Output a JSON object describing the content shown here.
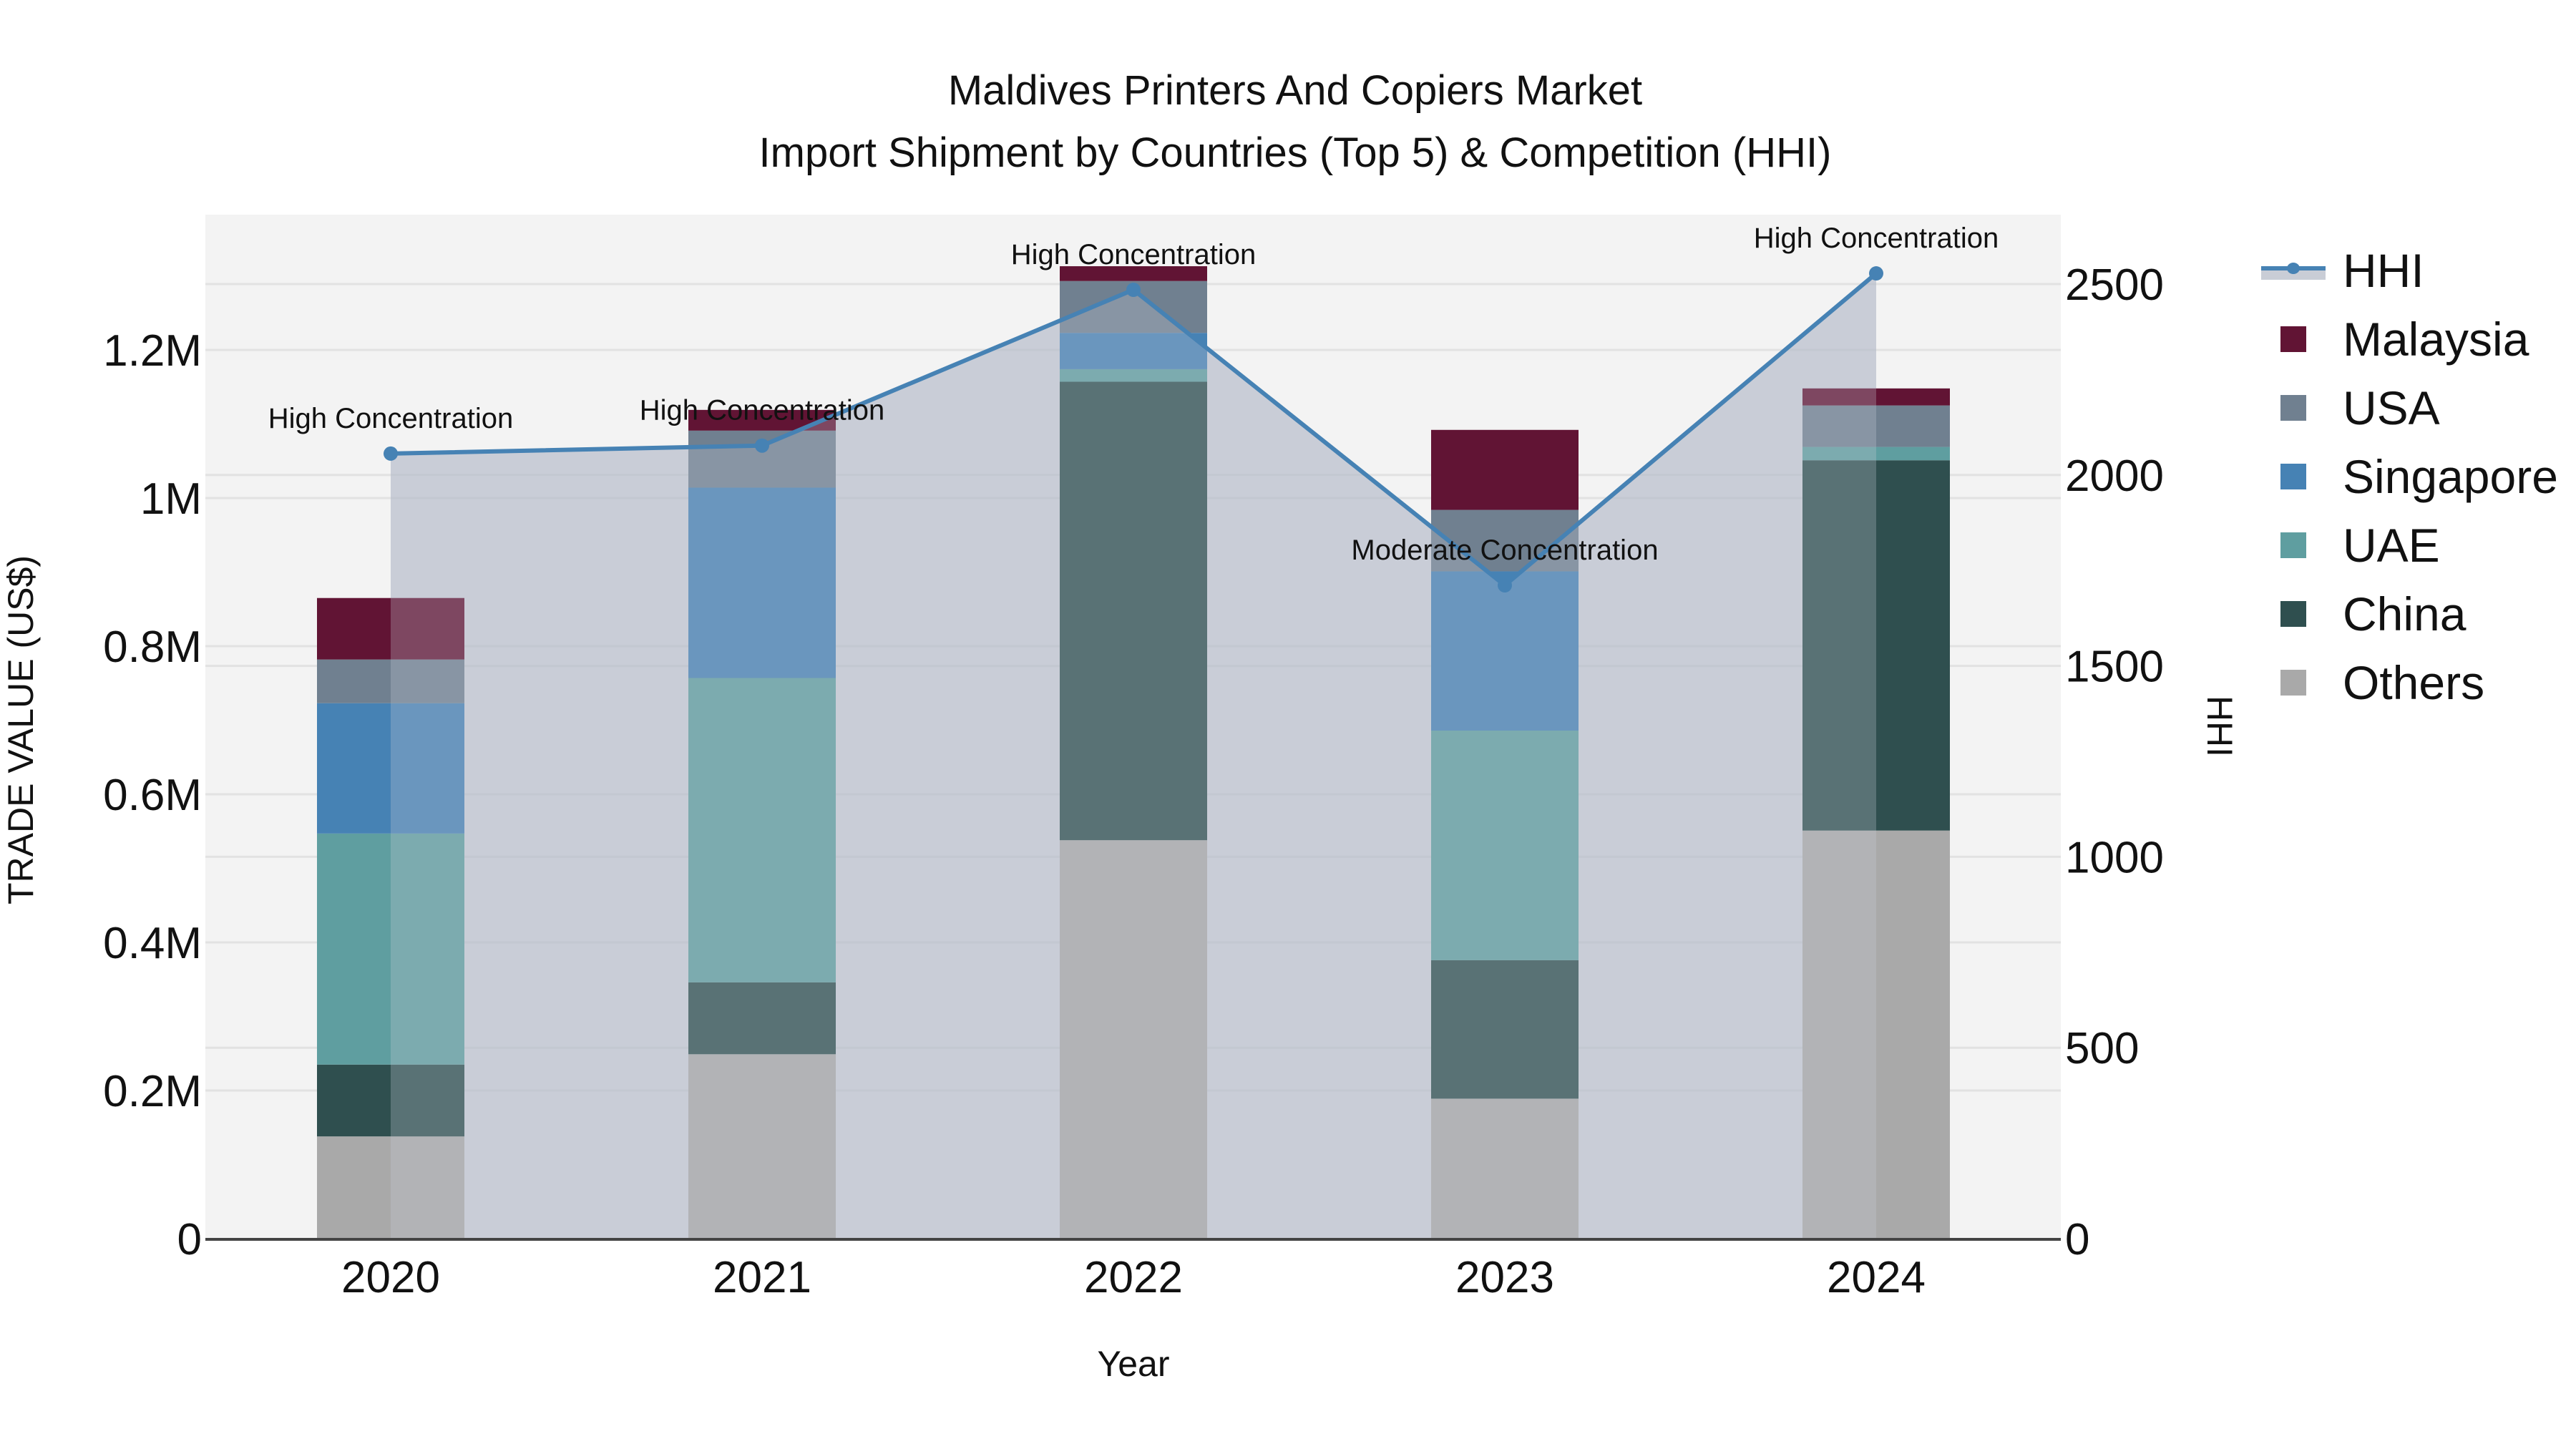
{
  "title": {
    "line1": "Maldives Printers And Copiers Market",
    "line2": "Import Shipment by Countries (Top 5) & Competition (HHI)"
  },
  "axes": {
    "x_title": "Year",
    "y_left_title": "TRADE VALUE (US$)",
    "y_right_title": "HHI",
    "y_left_ticks": [
      "0",
      "0.2M",
      "0.4M",
      "0.6M",
      "0.8M",
      "1M",
      "1.2M"
    ],
    "y_right_ticks": [
      "0",
      "500",
      "1000",
      "1500",
      "2000",
      "2500"
    ],
    "x_ticks": [
      "2020",
      "2021",
      "2022",
      "2023",
      "2024"
    ]
  },
  "legend": [
    {
      "name": "HHI",
      "type": "line",
      "color": "#4682b4"
    },
    {
      "name": "Malaysia",
      "type": "bar",
      "color": "#611434"
    },
    {
      "name": "USA",
      "type": "bar",
      "color": "#708090"
    },
    {
      "name": "Singapore",
      "type": "bar",
      "color": "#4682b4"
    },
    {
      "name": "UAE",
      "type": "bar",
      "color": "#5f9ea0"
    },
    {
      "name": "China",
      "type": "bar",
      "color": "#2f4f4f"
    },
    {
      "name": "Others",
      "type": "bar",
      "color": "#a9a9a9"
    }
  ],
  "annotations": [
    {
      "year": "2020",
      "text": "High Concentration"
    },
    {
      "year": "2021",
      "text": "High Concentration"
    },
    {
      "year": "2022",
      "text": "High Concentration"
    },
    {
      "year": "2023",
      "text": "Moderate Concentration"
    },
    {
      "year": "2024",
      "text": "High Concentration"
    }
  ],
  "chart_data": {
    "type": "bar",
    "subtype": "stacked bar with line (secondary axis)",
    "title": "Maldives Printers And Copiers Market — Import Shipment by Countries (Top 5) & Competition (HHI)",
    "xlabel": "Year",
    "ylabel": "TRADE VALUE (US$)",
    "y2label": "HHI",
    "ylim": [
      0,
      1.38
    ],
    "y_unit": "million US$",
    "y2lim": [
      0,
      2680
    ],
    "grid": true,
    "legend_position": "right",
    "categories": [
      "2020",
      "2021",
      "2022",
      "2023",
      "2024"
    ],
    "series": [
      {
        "name": "Others",
        "color": "#a9a9a9",
        "values": [
          0.138,
          0.249,
          0.538,
          0.189,
          0.551
        ]
      },
      {
        "name": "China",
        "color": "#2f4f4f",
        "values": [
          0.097,
          0.097,
          0.619,
          0.187,
          0.5
        ]
      },
      {
        "name": "UAE",
        "color": "#5f9ea0",
        "values": [
          0.312,
          0.411,
          0.017,
          0.31,
          0.018
        ]
      },
      {
        "name": "Singapore",
        "color": "#4682b4",
        "values": [
          0.176,
          0.257,
          0.049,
          0.215,
          0.0
        ]
      },
      {
        "name": "USA",
        "color": "#708090",
        "values": [
          0.059,
          0.077,
          0.07,
          0.083,
          0.056
        ]
      },
      {
        "name": "Malaysia",
        "color": "#611434",
        "values": [
          0.083,
          0.028,
          0.02,
          0.108,
          0.023
        ]
      }
    ],
    "totals": [
      0.86,
      1.12,
      1.313,
      1.094,
      1.148
    ],
    "line_series": {
      "name": "HHI",
      "axis": "right",
      "color": "#4682b4",
      "values": [
        2056,
        2077,
        2485,
        1711,
        2528
      ],
      "labels": [
        "High Concentration",
        "High Concentration",
        "High Concentration",
        "Moderate Concentration",
        "High Concentration"
      ]
    }
  }
}
